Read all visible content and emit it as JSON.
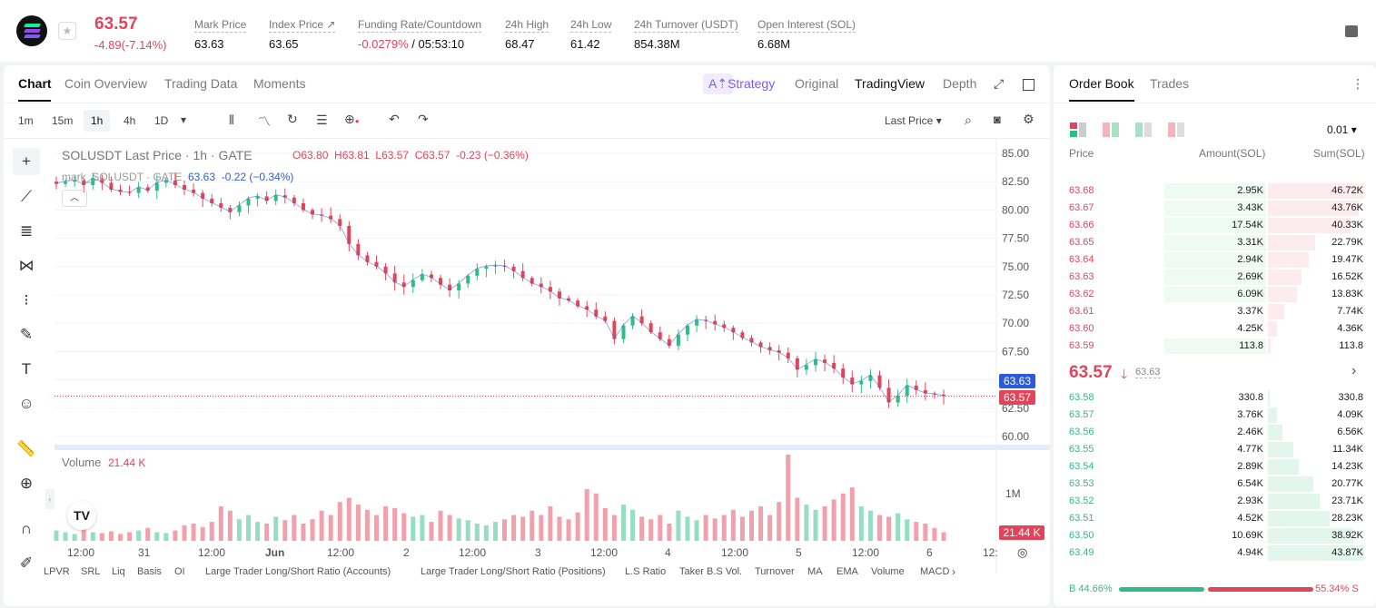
{
  "header": {
    "last_price": "63.57",
    "change": "-4.89(-7.14%)",
    "stats": [
      {
        "label": "Mark Price",
        "value": "63.63"
      },
      {
        "label": "Index Price ↗",
        "value": "63.65"
      },
      {
        "label": "Funding Rate/Countdown",
        "value_red": "-0.0279%",
        "value": "/ 05:53:10"
      },
      {
        "label": "24h High",
        "value": "68.47"
      },
      {
        "label": "24h Low",
        "value": "61.42"
      },
      {
        "label": "24h Turnover (USDT)",
        "value": "854.38M"
      },
      {
        "label": "Open Interest (SOL)",
        "value": "6.68M"
      }
    ]
  },
  "chart_tabs": [
    "Chart",
    "Coin Overview",
    "Trading Data",
    "Moments"
  ],
  "view_tabs": {
    "strategy": "Strategy",
    "original": "Original",
    "tradingview": "TradingView",
    "depth": "Depth"
  },
  "intervals": [
    "1m",
    "15m",
    "1h",
    "4h",
    "1D"
  ],
  "price_type": "Last Price",
  "legend": {
    "title": "SOLUSDT Last Price · 1h · GATE",
    "ohlc": "O63.80  H63.81  L63.57  C63.57  -0.23 (−0.36%)",
    "mark_label": "mark_SOLUSDT · GATE",
    "mark_value": "63.63  -0.22 (−0.34%)"
  },
  "volume": {
    "label": "Volume",
    "value": "21.44 K",
    "axis_label": "1M",
    "current": "21.44 K"
  },
  "price_tags": {
    "mark": "63.63",
    "last": "63.57"
  },
  "bottom_indicators": [
    "LPVR",
    "SRL",
    "Liq",
    "Basis",
    "OI",
    "Large Trader Long/Short Ratio (Accounts)",
    "Large Trader Long/Short Ratio (Positions)",
    "L.S Ratio",
    "Taker B.S Vol.",
    "Turnover",
    "MA",
    "EMA",
    "Volume",
    "MACD"
  ],
  "colors": {
    "up": "#2ebd85",
    "down": "#e4445a",
    "accent": "#7b5cf0"
  },
  "chart_data": {
    "type": "candlestick",
    "title": "SOLUSDT Last Price · 1h · GATE",
    "x_tick_labels": [
      "12:00",
      "31",
      "12:00",
      "Jun",
      "12:00",
      "2",
      "12:00",
      "3",
      "12:00",
      "4",
      "12:00",
      "5",
      "12:00",
      "6",
      "12:"
    ],
    "y_tick_labels": [
      "85.00",
      "82.50",
      "80.00",
      "77.50",
      "75.00",
      "72.50",
      "70.00",
      "67.50",
      "65.00",
      "62.50",
      "60.00"
    ],
    "ylim": [
      60,
      85
    ],
    "close_path": [
      82.3,
      82.5,
      82.6,
      82.2,
      82.8,
      82.4,
      81.8,
      81.6,
      81.5,
      82.0,
      81.7,
      82.4,
      82.6,
      82.2,
      81.8,
      81.5,
      81.0,
      80.6,
      80.2,
      79.8,
      80.4,
      81.0,
      81.2,
      80.8,
      81.3,
      81.1,
      80.6,
      80.0,
      79.6,
      79.5,
      79.2,
      78.6,
      77.0,
      76.0,
      75.4,
      75.0,
      74.4,
      73.6,
      73.2,
      73.8,
      74.3,
      74.0,
      73.4,
      72.9,
      73.5,
      74.2,
      74.8,
      75.0,
      75.1,
      75.0,
      74.6,
      74.0,
      73.5,
      73.2,
      72.8,
      72.2,
      72.0,
      71.5,
      71.2,
      70.6,
      70.2,
      68.6,
      69.8,
      70.6,
      70.0,
      69.2,
      68.6,
      68.0,
      69.0,
      69.8,
      70.3,
      70.2,
      69.9,
      69.6,
      69.2,
      68.7,
      68.3,
      67.9,
      67.6,
      67.4,
      66.9,
      65.9,
      66.3,
      66.8,
      66.5,
      66.0,
      65.2,
      64.6,
      64.9,
      65.4,
      64.3,
      63.0,
      63.6,
      64.5,
      64.1,
      63.8,
      63.7,
      63.57
    ],
    "volume_levels": [
      0.12,
      0.1,
      0.08,
      0.14,
      0.1,
      0.09,
      0.11,
      0.08,
      0.1,
      0.12,
      0.15,
      0.1,
      0.09,
      0.12,
      0.18,
      0.2,
      0.16,
      0.22,
      0.4,
      0.35,
      0.25,
      0.3,
      0.22,
      0.2,
      0.28,
      0.24,
      0.3,
      0.2,
      0.25,
      0.35,
      0.3,
      0.45,
      0.5,
      0.42,
      0.36,
      0.3,
      0.4,
      0.38,
      0.32,
      0.28,
      0.3,
      0.22,
      0.35,
      0.3,
      0.26,
      0.24,
      0.2,
      0.18,
      0.22,
      0.25,
      0.3,
      0.28,
      0.35,
      0.3,
      0.4,
      0.28,
      0.25,
      0.33,
      0.6,
      0.55,
      0.38,
      0.3,
      0.42,
      0.36,
      0.28,
      0.25,
      0.3,
      0.2,
      0.35,
      0.28,
      0.24,
      0.3,
      0.26,
      0.3,
      0.36,
      0.28,
      0.35,
      0.4,
      0.3,
      0.45,
      1.0,
      0.5,
      0.42,
      0.36,
      0.4,
      0.48,
      0.55,
      0.62,
      0.4,
      0.35,
      0.3,
      0.28,
      0.32,
      0.25,
      0.22,
      0.2,
      0.15,
      0.1
    ],
    "volume_axis": "1M"
  },
  "orderbook": {
    "tabs": [
      "Order Book",
      "Trades"
    ],
    "precision": "0.01",
    "headers": [
      "Price",
      "Amount(SOL)",
      "Sum(SOL)"
    ],
    "asks": [
      [
        "63.68",
        "2.95K",
        "46.72K"
      ],
      [
        "63.67",
        "3.43K",
        "43.76K"
      ],
      [
        "63.66",
        "17.54K",
        "40.33K"
      ],
      [
        "63.65",
        "3.31K",
        "22.79K"
      ],
      [
        "63.64",
        "2.94K",
        "19.47K"
      ],
      [
        "63.63",
        "2.69K",
        "16.52K"
      ],
      [
        "63.62",
        "6.09K",
        "13.83K"
      ],
      [
        "63.61",
        "3.37K",
        "7.74K"
      ],
      [
        "63.60",
        "4.25K",
        "4.36K"
      ],
      [
        "63.59",
        "113.8",
        "113.8"
      ]
    ],
    "ask_sum_fraction": [
      1.0,
      0.94,
      0.86,
      0.49,
      0.42,
      0.35,
      0.3,
      0.17,
      0.09,
      0.03
    ],
    "ask_amount_fraction": [
      1.0,
      1.0,
      1.0,
      1.0,
      1.0,
      1.0,
      1.0,
      0.0,
      0.0,
      1.0
    ],
    "mid_price": "63.57",
    "mid_mark": "63.63",
    "bids": [
      [
        "63.58",
        "330.8",
        "330.8"
      ],
      [
        "63.57",
        "3.76K",
        "4.09K"
      ],
      [
        "63.56",
        "2.46K",
        "6.56K"
      ],
      [
        "63.55",
        "4.77K",
        "11.34K"
      ],
      [
        "63.54",
        "2.89K",
        "14.23K"
      ],
      [
        "63.53",
        "6.54K",
        "20.77K"
      ],
      [
        "63.52",
        "2.93K",
        "23.71K"
      ],
      [
        "63.51",
        "4.52K",
        "28.23K"
      ],
      [
        "63.50",
        "10.69K",
        "38.92K"
      ],
      [
        "63.49",
        "4.94K",
        "43.87K"
      ]
    ],
    "bid_sum_fraction": [
      0.01,
      0.09,
      0.15,
      0.26,
      0.32,
      0.47,
      0.54,
      0.64,
      0.89,
      1.0
    ],
    "buy_ratio": "B 44.66%",
    "sell_ratio": "55.34% S",
    "buy_fraction": 0.4466
  }
}
